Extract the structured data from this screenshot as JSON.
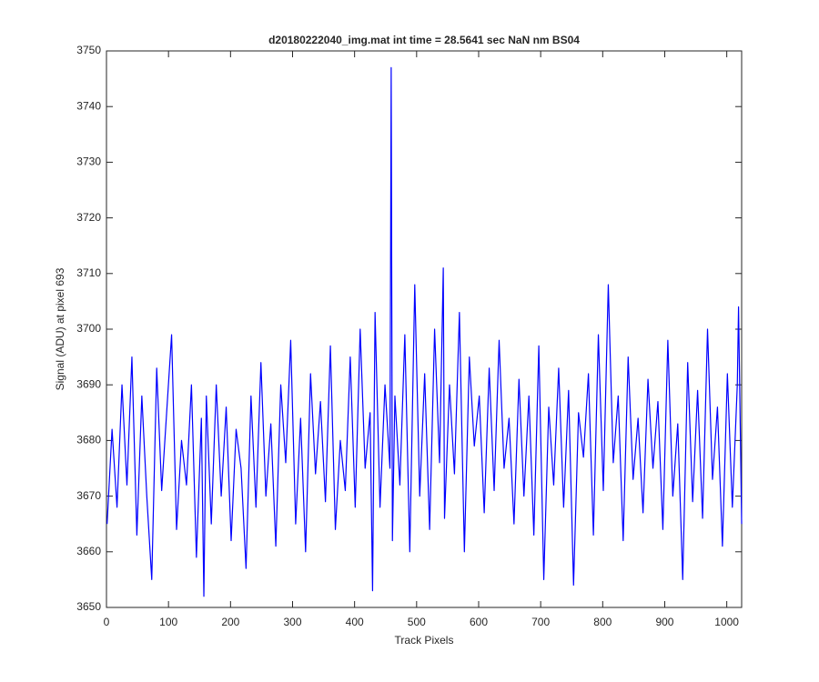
{
  "chart_data": {
    "type": "line",
    "title": "d20180222040_img.mat int time = 28.5641 sec  NaN nm BS04",
    "x_label": "Track Pixels",
    "y_label": "Signal (ADU) at pixel 693",
    "xlim": [
      0,
      1024
    ],
    "ylim": [
      3650,
      3750
    ],
    "xticks": [
      0,
      100,
      200,
      300,
      400,
      500,
      600,
      700,
      800,
      900,
      1000
    ],
    "yticks": [
      3650,
      3660,
      3670,
      3680,
      3690,
      3700,
      3710,
      3720,
      3730,
      3740,
      3750
    ],
    "grid": false,
    "x": [
      1,
      9,
      17,
      25,
      33,
      41,
      49,
      57,
      65,
      73,
      81,
      89,
      97,
      105,
      113,
      121,
      129,
      137,
      145,
      153,
      157,
      161,
      169,
      177,
      185,
      193,
      201,
      209,
      217,
      225,
      233,
      241,
      249,
      257,
      265,
      273,
      281,
      289,
      297,
      305,
      313,
      321,
      329,
      337,
      345,
      353,
      361,
      369,
      377,
      385,
      393,
      401,
      409,
      417,
      425,
      429,
      433,
      441,
      449,
      457,
      459,
      461,
      465,
      473,
      481,
      489,
      497,
      505,
      513,
      521,
      529,
      537,
      543,
      545,
      553,
      561,
      569,
      577,
      585,
      593,
      601,
      609,
      617,
      625,
      633,
      641,
      649,
      657,
      665,
      673,
      681,
      689,
      697,
      705,
      713,
      721,
      729,
      737,
      745,
      753,
      761,
      769,
      777,
      785,
      793,
      801,
      809,
      817,
      825,
      833,
      841,
      849,
      857,
      865,
      873,
      881,
      889,
      897,
      905,
      913,
      921,
      929,
      937,
      945,
      953,
      961,
      969,
      977,
      985,
      993,
      1001,
      1009,
      1017,
      1019,
      1024
    ],
    "series": [
      {
        "name": "signal",
        "color": "#0000ff",
        "values": [
          3665,
          3682,
          3668,
          3690,
          3672,
          3695,
          3663,
          3688,
          3670,
          3655,
          3693,
          3671,
          3685,
          3699,
          3664,
          3680,
          3672,
          3690,
          3659,
          3684,
          3652,
          3688,
          3665,
          3690,
          3670,
          3686,
          3662,
          3682,
          3675,
          3657,
          3688,
          3668,
          3694,
          3670,
          3683,
          3661,
          3690,
          3676,
          3698,
          3665,
          3684,
          3660,
          3692,
          3674,
          3687,
          3669,
          3697,
          3664,
          3680,
          3671,
          3695,
          3668,
          3700,
          3675,
          3685,
          3653,
          3703,
          3668,
          3690,
          3675,
          3747,
          3662,
          3688,
          3672,
          3699,
          3660,
          3708,
          3670,
          3692,
          3664,
          3700,
          3676,
          3711,
          3666,
          3690,
          3674,
          3703,
          3660,
          3695,
          3679,
          3688,
          3667,
          3693,
          3671,
          3698,
          3675,
          3684,
          3665,
          3691,
          3670,
          3688,
          3663,
          3697,
          3655,
          3686,
          3672,
          3693,
          3668,
          3689,
          3654,
          3685,
          3677,
          3692,
          3663,
          3699,
          3671,
          3708,
          3676,
          3688,
          3662,
          3695,
          3673,
          3684,
          3667,
          3691,
          3675,
          3687,
          3664,
          3698,
          3670,
          3683,
          3655,
          3694,
          3669,
          3689,
          3666,
          3700,
          3673,
          3686,
          3661,
          3692,
          3668,
          3690,
          3704,
          3665
        ]
      }
    ]
  }
}
